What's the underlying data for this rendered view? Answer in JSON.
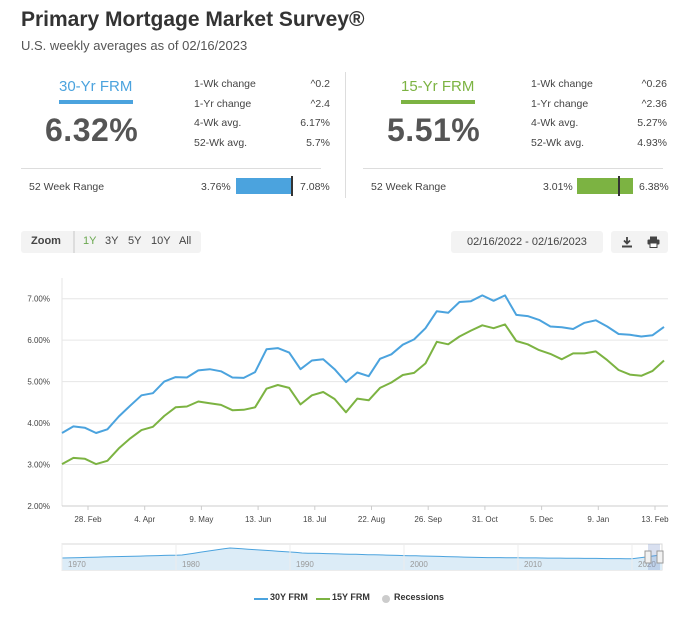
{
  "header": {
    "title": "Primary Mortgage Market Survey®",
    "subtitle": "U.S. weekly averages as of 02/16/2023"
  },
  "rates": [
    {
      "label": "30-Yr FRM",
      "value": "6.32%",
      "color": "#4ba3de",
      "stats": [
        {
          "key": "1-Wk change",
          "value": "^0.2"
        },
        {
          "key": "1-Yr change",
          "value": "^2.4"
        },
        {
          "key": "4-Wk avg.",
          "value": "6.17%"
        },
        {
          "key": "52-Wk avg.",
          "value": "5.7%"
        }
      ],
      "range": {
        "label": "52 Week Range",
        "min": "3.76%",
        "max": "7.08%",
        "min_value": 3.76,
        "max_value": 7.08,
        "current": 6.32
      }
    },
    {
      "label": "15-Yr FRM",
      "value": "5.51%",
      "color": "#7cb342",
      "stats": [
        {
          "key": "1-Wk change",
          "value": "^0.26"
        },
        {
          "key": "1-Yr change",
          "value": "^2.36"
        },
        {
          "key": "4-Wk avg.",
          "value": "5.27%"
        },
        {
          "key": "52-Wk avg.",
          "value": "4.93%"
        }
      ],
      "range": {
        "label": "52 Week Range",
        "min": "3.01%",
        "max": "6.38%",
        "min_value": 3.01,
        "max_value": 6.38,
        "current": 5.51
      }
    }
  ],
  "toolbar": {
    "zoom_label": "Zoom",
    "zoom_options": [
      "1Y",
      "3Y",
      "5Y",
      "10Y",
      "All"
    ],
    "zoom_active": "1Y",
    "date_range": "02/16/2022 - 02/16/2023",
    "download_icon": "download-icon",
    "print_icon": "print-icon"
  },
  "chart_data": {
    "type": "line",
    "ylim": [
      2.0,
      7.5
    ],
    "y_ticks": [
      "2.00%",
      "3.00%",
      "4.00%",
      "5.00%",
      "6.00%",
      "7.00%"
    ],
    "x_tick_labels": [
      "28. Feb",
      "4. Apr",
      "9. May",
      "13. Jun",
      "18. Jul",
      "22. Aug",
      "26. Sep",
      "31. Oct",
      "5. Dec",
      "9. Jan",
      "13. Feb"
    ],
    "grid": true,
    "legend_position": "bottom",
    "series": [
      {
        "name": "30Y FRM",
        "color": "#4ba3de",
        "values": [
          3.76,
          3.92,
          3.89,
          3.76,
          3.85,
          4.16,
          4.42,
          4.67,
          4.72,
          5.0,
          5.11,
          5.1,
          5.27,
          5.3,
          5.25,
          5.1,
          5.09,
          5.23,
          5.78,
          5.81,
          5.7,
          5.3,
          5.51,
          5.54,
          5.3,
          4.99,
          5.22,
          5.13,
          5.55,
          5.66,
          5.89,
          6.02,
          6.29,
          6.7,
          6.66,
          6.92,
          6.94,
          7.08,
          6.95,
          7.08,
          6.61,
          6.58,
          6.49,
          6.33,
          6.31,
          6.27,
          6.42,
          6.48,
          6.33,
          6.15,
          6.13,
          6.09,
          6.12,
          6.32
        ]
      },
      {
        "name": "15Y FRM",
        "color": "#7cb342",
        "values": [
          3.01,
          3.16,
          3.14,
          3.01,
          3.09,
          3.39,
          3.63,
          3.83,
          3.91,
          4.17,
          4.38,
          4.4,
          4.52,
          4.48,
          4.44,
          4.31,
          4.32,
          4.38,
          4.83,
          4.92,
          4.85,
          4.45,
          4.67,
          4.75,
          4.58,
          4.26,
          4.59,
          4.55,
          4.85,
          4.98,
          5.16,
          5.21,
          5.44,
          5.96,
          5.9,
          6.09,
          6.23,
          6.36,
          6.29,
          6.38,
          5.98,
          5.9,
          5.76,
          5.67,
          5.54,
          5.68,
          5.68,
          5.73,
          5.52,
          5.28,
          5.17,
          5.14,
          5.26,
          5.51
        ]
      }
    ],
    "navigator": {
      "x_tick_labels": [
        "1970",
        "1980",
        "1990",
        "2000",
        "2010",
        "2020"
      ]
    }
  },
  "legend": {
    "items": [
      {
        "label": "30Y FRM",
        "color": "#4ba3de"
      },
      {
        "label": "15Y FRM",
        "color": "#7cb342"
      },
      {
        "label": "Recessions",
        "color": "#cccccc"
      }
    ]
  }
}
